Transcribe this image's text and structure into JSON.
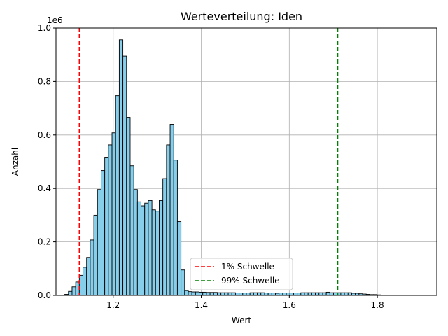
{
  "chart_data": {
    "type": "bar",
    "title": "Werteverteilung: Iden",
    "xlabel": "Wert",
    "ylabel": "Anzahl",
    "y_scale_label": "1e6",
    "xlim": [
      1.07,
      1.935
    ],
    "ylim": [
      0,
      1000000
    ],
    "x_ticks": [
      1.2,
      1.4,
      1.6,
      1.8
    ],
    "x_tick_labels": [
      "1.2",
      "1.4",
      "1.6",
      "1.8"
    ],
    "y_ticks": [
      0,
      200000,
      400000,
      600000,
      800000,
      1000000
    ],
    "y_tick_labels": [
      "0.0",
      "0.2",
      "0.4",
      "0.6",
      "0.8",
      "1.0"
    ],
    "grid": true,
    "bar_color": "#87ceeb",
    "bar_edge_color": "#000000",
    "bins": {
      "start": 1.09,
      "width": 0.00825,
      "counts": [
        4000,
        15000,
        32000,
        50000,
        75000,
        105000,
        142000,
        207000,
        300000,
        396000,
        467000,
        517000,
        563000,
        608000,
        747000,
        956000,
        895000,
        666000,
        485000,
        396000,
        350000,
        335000,
        345000,
        355000,
        320000,
        315000,
        355000,
        437000,
        563000,
        640000,
        506000,
        276000,
        95000,
        18000,
        14000,
        13000,
        13000,
        12000,
        12000,
        11000,
        11000,
        11000,
        10000,
        10000,
        10000,
        10000,
        10000,
        9000,
        9000,
        9000,
        9000,
        10000,
        10000,
        10000,
        10000,
        9000,
        9000,
        9000,
        8000,
        9000,
        9000,
        9000,
        9000,
        9000,
        9000,
        10000,
        10000,
        10000,
        10000,
        10000,
        10000,
        10000,
        12000,
        10000,
        10000,
        10000,
        10000,
        10000,
        10000,
        8000,
        8000,
        6000,
        5000,
        4000,
        3000,
        3000,
        2000,
        1000,
        1000,
        1000,
        500,
        500,
        500,
        300,
        200,
        100,
        100,
        100,
        100,
        100
      ]
    },
    "thresholds": [
      {
        "name": "1% Schwelle",
        "x": 1.123,
        "color": "#ff0000"
      },
      {
        "name": "99% Schwelle",
        "x": 1.71,
        "color": "#008000"
      }
    ],
    "legend_position": "lower-center"
  }
}
